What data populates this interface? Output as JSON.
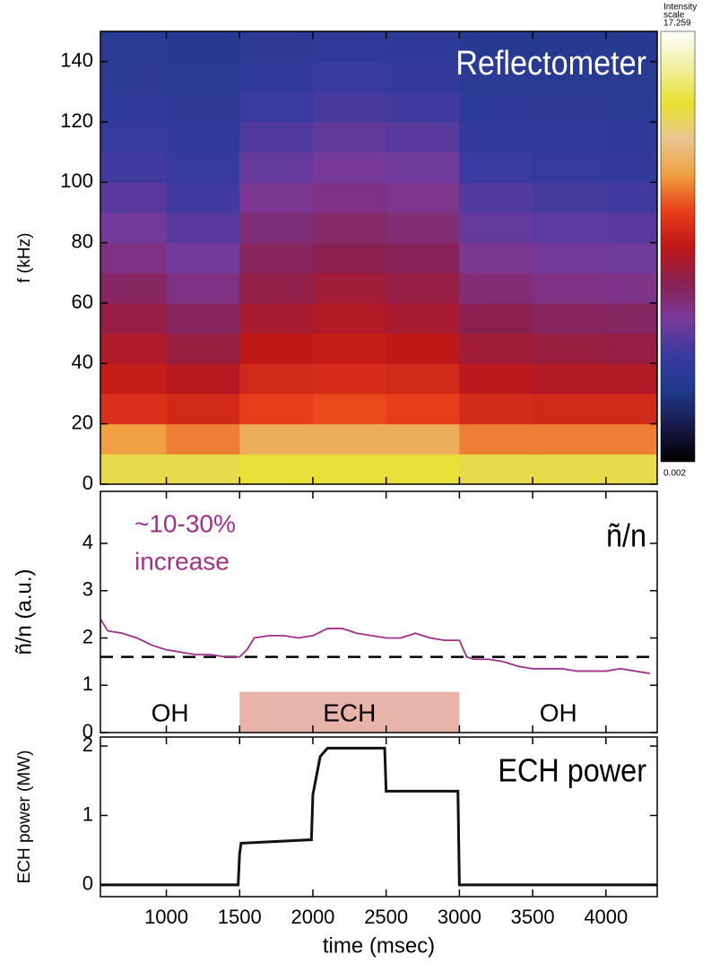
{
  "chart_data": [
    {
      "type": "heatmap",
      "title": "Reflectometer",
      "ylabel": "f (kHz)",
      "x_edges": [
        550,
        1000,
        1500,
        2000,
        2500,
        3000,
        3500,
        4000,
        4350
      ],
      "y_edges": [
        0,
        10,
        20,
        30,
        40,
        50,
        60,
        70,
        80,
        90,
        100,
        110,
        120,
        130,
        140,
        150
      ],
      "z": [
        [
          14,
          14,
          14.5,
          14.5,
          14.5,
          14,
          14,
          14
        ],
        [
          11.5,
          11,
          12,
          12,
          12,
          11,
          11,
          11
        ],
        [
          9.5,
          9.2,
          10,
          10.2,
          10,
          9.3,
          9.2,
          9.2
        ],
        [
          8.8,
          8.4,
          9.2,
          9.4,
          9.2,
          8.5,
          8.3,
          8.3
        ],
        [
          8.2,
          7.6,
          8.6,
          8.8,
          8.6,
          7.8,
          7.6,
          7.5
        ],
        [
          7.5,
          6.9,
          8,
          8.3,
          8,
          7.2,
          6.9,
          6.8
        ],
        [
          6.8,
          6.2,
          7.4,
          7.8,
          7.5,
          6.5,
          6.2,
          6.1
        ],
        [
          6.2,
          5.6,
          6.9,
          7.2,
          7,
          5.9,
          5.6,
          5.5
        ],
        [
          5.6,
          5,
          6.4,
          6.7,
          6.5,
          5.3,
          5.1,
          5
        ],
        [
          5,
          4.5,
          5.9,
          6.2,
          6,
          4.8,
          4.6,
          4.5
        ],
        [
          4.5,
          4.1,
          5.3,
          5.7,
          5.5,
          4.3,
          4.1,
          4
        ],
        [
          4.1,
          3.8,
          4.8,
          5.2,
          5,
          3.9,
          3.8,
          3.7
        ],
        [
          3.8,
          3.6,
          4.3,
          4.7,
          4.5,
          3.7,
          3.6,
          3.5
        ],
        [
          3.6,
          3.4,
          3.9,
          4.2,
          4,
          3.5,
          3.4,
          3.4
        ],
        [
          3.4,
          3.3,
          3.6,
          3.8,
          3.7,
          3.3,
          3.3,
          3.3
        ]
      ],
      "xlim": [
        550,
        4350
      ],
      "ylim": [
        0,
        150
      ],
      "yticks": [
        0,
        20,
        40,
        60,
        80,
        100,
        120,
        140
      ],
      "colorbar_title": [
        "Intensity",
        "scale"
      ],
      "zlim": [
        0.002,
        17.259
      ],
      "colors": [
        "#000000",
        "#1a1a4a",
        "#1f3a8c",
        "#3a3aa0",
        "#7a3a9a",
        "#8a2050",
        "#c01818",
        "#e8401a",
        "#f0a040",
        "#e8c890",
        "#e8e030",
        "#f0f0a0",
        "#ffffff"
      ]
    },
    {
      "type": "line",
      "label": "ñ/n",
      "ylabel": "ñ/n (a.u.)",
      "annotation": [
        "~10-30%",
        "increase"
      ],
      "annotation_color": "#a0308a",
      "x": [
        550,
        600,
        700,
        800,
        900,
        1000,
        1100,
        1200,
        1300,
        1400,
        1500,
        1550,
        1600,
        1700,
        1800,
        1900,
        2000,
        2100,
        2200,
        2300,
        2400,
        2500,
        2600,
        2700,
        2800,
        2900,
        3000,
        3050,
        3100,
        3200,
        3300,
        3400,
        3500,
        3600,
        3700,
        3800,
        3900,
        4000,
        4100,
        4200,
        4300
      ],
      "values": [
        2.4,
        2.15,
        2.1,
        2.0,
        1.85,
        1.75,
        1.7,
        1.65,
        1.65,
        1.6,
        1.6,
        1.75,
        2.0,
        2.05,
        2.05,
        2.0,
        2.05,
        2.2,
        2.2,
        2.1,
        2.05,
        2.0,
        2.0,
        2.1,
        2.0,
        1.95,
        1.95,
        1.6,
        1.55,
        1.55,
        1.5,
        1.4,
        1.35,
        1.35,
        1.35,
        1.3,
        1.3,
        1.3,
        1.35,
        1.3,
        1.25
      ],
      "color": "#a0308a",
      "hline": 1.6,
      "band": {
        "xlim": [
          1500,
          3000
        ],
        "height": 0.86,
        "color": "#e8b4aa"
      },
      "region_labels": [
        "OH",
        "ECH",
        "OH"
      ],
      "xlim": [
        550,
        4350
      ],
      "ylim": [
        0,
        5.1
      ],
      "yticks": [
        0,
        1,
        2,
        3,
        4
      ]
    },
    {
      "type": "line",
      "label": "ECH power",
      "ylabel": "ECH power (MW)",
      "xlabel": "time (msec)",
      "x": [
        550,
        1490,
        1500,
        1510,
        1990,
        2000,
        2050,
        2100,
        2490,
        2500,
        2990,
        3000,
        4350
      ],
      "values": [
        0,
        0,
        0.45,
        0.6,
        0.65,
        1.3,
        1.85,
        1.97,
        1.97,
        1.35,
        1.35,
        0,
        0
      ],
      "color": "#111111",
      "xlim": [
        550,
        4350
      ],
      "ylim": [
        -0.17,
        2.13
      ],
      "yticks": [
        0,
        1,
        2
      ],
      "xticks": [
        1000,
        1500,
        2000,
        2500,
        3000,
        3500,
        4000
      ]
    }
  ]
}
